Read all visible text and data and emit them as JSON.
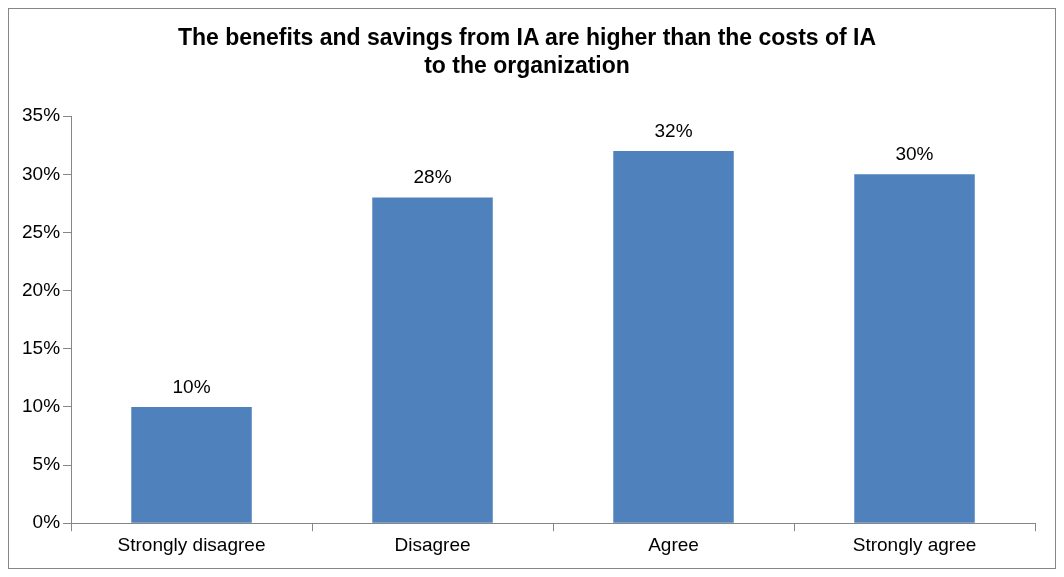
{
  "chart_data": {
    "type": "bar",
    "title": "The benefits and savings from IA are higher than the costs of IA to the organization",
    "categories": [
      "Strongly disagree",
      "Disagree",
      "Agree",
      "Strongly agree"
    ],
    "values": [
      10,
      28,
      32,
      30
    ],
    "value_labels": [
      "10%",
      "28%",
      "32%",
      "30%"
    ],
    "color": "#4f81bd",
    "ylim": [
      0,
      35
    ],
    "yticks": [
      {
        "value": 0,
        "label": "0%"
      },
      {
        "value": 5,
        "label": "5%"
      },
      {
        "value": 10,
        "label": "10%"
      },
      {
        "value": 15,
        "label": "15%"
      },
      {
        "value": 20,
        "label": "20%"
      },
      {
        "value": 25,
        "label": "25%"
      },
      {
        "value": 30,
        "label": "30%"
      },
      {
        "value": 35,
        "label": "35%"
      }
    ],
    "grid": false,
    "legend": false
  }
}
